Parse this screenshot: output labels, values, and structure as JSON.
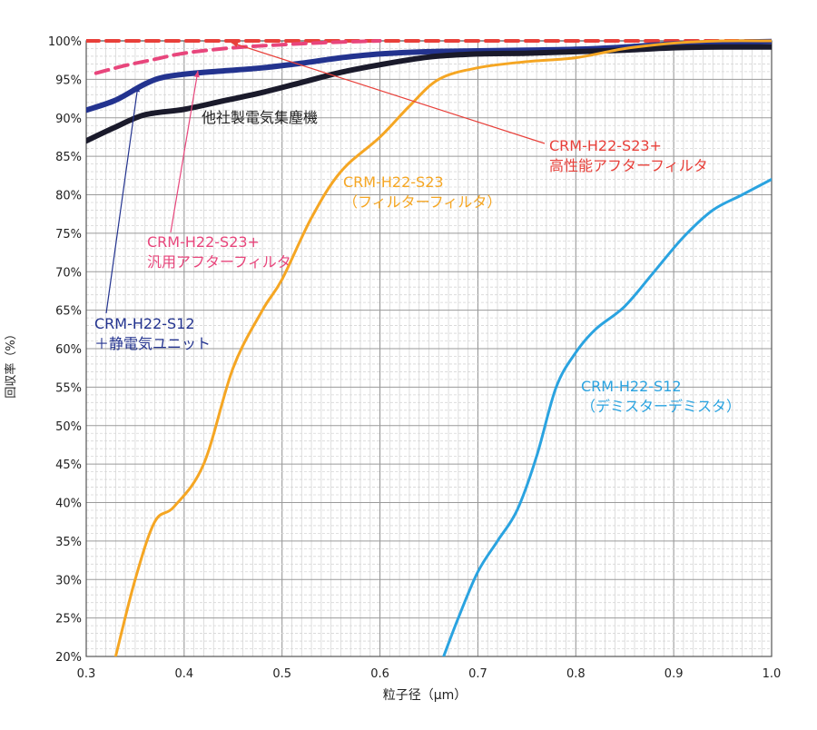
{
  "chart_data": {
    "type": "line",
    "title": "",
    "xlabel": "粒子径（μm）",
    "ylabel": "回収率（%）",
    "xlim": [
      0.3,
      1.0
    ],
    "ylim": [
      20,
      100
    ],
    "x_ticks": [
      0.3,
      0.4,
      0.5,
      0.6,
      0.7,
      0.8,
      0.9,
      1.0
    ],
    "x_tick_labels": [
      "0.3",
      "0.4",
      "0.5",
      "0.6",
      "0.7",
      "0.8",
      "0.9",
      "1.0"
    ],
    "y_ticks": [
      20,
      25,
      30,
      35,
      40,
      45,
      50,
      55,
      60,
      65,
      70,
      75,
      80,
      85,
      90,
      95,
      100
    ],
    "y_tick_labels": [
      "20%",
      "25%",
      "30%",
      "35%",
      "40%",
      "45%",
      "50%",
      "55%",
      "60%",
      "65%",
      "70%",
      "75%",
      "80%",
      "85%",
      "90%",
      "95%",
      "100%"
    ],
    "grid": true,
    "series": [
      {
        "key": "high_perf_filter",
        "color": "#e8403a",
        "dash": true,
        "label_lines": [
          "CRM-H22-S23+",
          "高性能アフターフィルタ"
        ],
        "points": [
          [
            0.3,
            100
          ],
          [
            0.35,
            100
          ],
          [
            0.4,
            100
          ],
          [
            0.5,
            100
          ],
          [
            0.6,
            100
          ],
          [
            0.7,
            100
          ],
          [
            0.8,
            100
          ],
          [
            0.9,
            100
          ],
          [
            1.0,
            100
          ]
        ]
      },
      {
        "key": "general_filter",
        "color": "#e8467c",
        "dash": true,
        "label_lines": [
          "CRM-H22-S23+",
          "汎用アフターフィルタ"
        ],
        "points": [
          [
            0.31,
            95.8
          ],
          [
            0.34,
            96.8
          ],
          [
            0.37,
            97.6
          ],
          [
            0.4,
            98.4
          ],
          [
            0.45,
            99.1
          ],
          [
            0.5,
            99.5
          ],
          [
            0.55,
            99.8
          ],
          [
            0.6,
            100
          ]
        ]
      },
      {
        "key": "electrostatic_unit",
        "color": "#23338f",
        "dash": false,
        "label_lines": [
          "CRM-H22-S12",
          "＋静電気ユニット"
        ],
        "points": [
          [
            0.3,
            91
          ],
          [
            0.33,
            92.3
          ],
          [
            0.36,
            94.4
          ],
          [
            0.38,
            95.3
          ],
          [
            0.41,
            95.8
          ],
          [
            0.44,
            96.1
          ],
          [
            0.48,
            96.5
          ],
          [
            0.52,
            97.1
          ],
          [
            0.56,
            97.8
          ],
          [
            0.6,
            98.3
          ],
          [
            0.65,
            98.6
          ],
          [
            0.7,
            98.7
          ],
          [
            0.75,
            98.8
          ],
          [
            0.8,
            98.9
          ],
          [
            0.85,
            99.2
          ],
          [
            0.9,
            99.6
          ],
          [
            0.95,
            99.8
          ],
          [
            1.0,
            99.9
          ]
        ]
      },
      {
        "key": "competitor",
        "color": "#1a1a2b",
        "dash": false,
        "label_lines": [
          "他社製電気集塵機"
        ],
        "points": [
          [
            0.3,
            87
          ],
          [
            0.33,
            88.8
          ],
          [
            0.36,
            90.4
          ],
          [
            0.4,
            91.1
          ],
          [
            0.44,
            92.2
          ],
          [
            0.48,
            93.3
          ],
          [
            0.52,
            94.6
          ],
          [
            0.56,
            95.9
          ],
          [
            0.6,
            96.9
          ],
          [
            0.65,
            97.9
          ],
          [
            0.7,
            98.3
          ],
          [
            0.75,
            98.4
          ],
          [
            0.8,
            98.6
          ],
          [
            0.85,
            98.8
          ],
          [
            0.9,
            99.1
          ],
          [
            0.95,
            99.2
          ],
          [
            1.0,
            99.2
          ]
        ]
      },
      {
        "key": "filter_filter",
        "color": "#f5a623",
        "dash": false,
        "label_lines": [
          "CRM-H22-S23",
          "（フィルターフィルタ）"
        ],
        "points": [
          [
            0.33,
            20
          ],
          [
            0.35,
            30
          ],
          [
            0.37,
            37.5
          ],
          [
            0.39,
            39.5
          ],
          [
            0.42,
            45
          ],
          [
            0.45,
            57.5
          ],
          [
            0.48,
            65
          ],
          [
            0.5,
            69
          ],
          [
            0.53,
            77
          ],
          [
            0.56,
            83
          ],
          [
            0.6,
            87.5
          ],
          [
            0.63,
            91.5
          ],
          [
            0.66,
            95
          ],
          [
            0.7,
            96.5
          ],
          [
            0.75,
            97.3
          ],
          [
            0.8,
            97.8
          ],
          [
            0.85,
            99
          ],
          [
            0.9,
            99.7
          ],
          [
            0.95,
            100
          ],
          [
            1.0,
            100
          ]
        ]
      },
      {
        "key": "demister",
        "color": "#2aa3e0",
        "dash": false,
        "label_lines": [
          "CRM-H22-S12",
          "（デミスターデミスタ）"
        ],
        "points": [
          [
            0.665,
            20
          ],
          [
            0.68,
            25
          ],
          [
            0.7,
            31
          ],
          [
            0.72,
            35
          ],
          [
            0.74,
            39
          ],
          [
            0.76,
            46
          ],
          [
            0.78,
            55
          ],
          [
            0.8,
            59.5
          ],
          [
            0.82,
            62.5
          ],
          [
            0.85,
            65.5
          ],
          [
            0.88,
            70
          ],
          [
            0.91,
            74.5
          ],
          [
            0.94,
            78
          ],
          [
            0.97,
            80
          ],
          [
            1.0,
            82
          ]
        ]
      }
    ]
  }
}
